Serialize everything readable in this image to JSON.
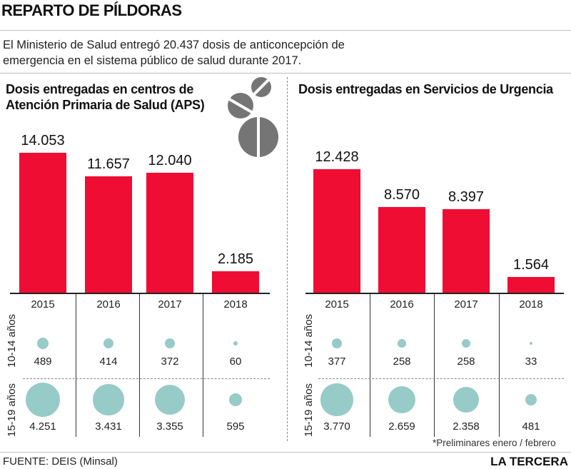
{
  "header": {
    "title": "REPARTO DE PÍLDORAS",
    "intro_line1": "El Ministerio de Salud entregó 20.437 dosis de anticoncepción de",
    "intro_line2": "emergencia  en el sistema público de salud durante 2017."
  },
  "colors": {
    "bar": "#ef0d33",
    "bubble": "#97cbc8",
    "pill": "#757575"
  },
  "icons": [
    "pill-icon",
    "pill-icon",
    "pill-icon"
  ],
  "chart_data": [
    {
      "type": "bar",
      "title_line1": "Dosis entregadas en centros de",
      "title_line2": "Atención Primaria de Salud (APS)",
      "categories": [
        "2015",
        "2016",
        "2017",
        "2018"
      ],
      "values": [
        14053,
        11657,
        12040,
        2185
      ],
      "value_labels": [
        "14.053",
        "11.657",
        "12.040",
        "2.185"
      ],
      "ylim": [
        0,
        16000
      ],
      "age_groups": [
        {
          "label": "10-14 años",
          "values": [
            489,
            414,
            372,
            60
          ],
          "value_labels": [
            "489",
            "414",
            "372",
            "60"
          ]
        },
        {
          "label": "15-19 años",
          "values": [
            4251,
            3431,
            3355,
            595
          ],
          "value_labels": [
            "4.251",
            "3.431",
            "3.355",
            "595"
          ]
        }
      ]
    },
    {
      "type": "bar",
      "title_line1": "Dosis entregadas en Servicios de Urgencia",
      "title_line2": "",
      "categories": [
        "2015",
        "2016",
        "2017",
        "2018"
      ],
      "values": [
        12428,
        8570,
        8397,
        1564
      ],
      "value_labels": [
        "12.428",
        "8.570",
        "8.397",
        "1.564"
      ],
      "ylim": [
        0,
        16000
      ],
      "age_groups": [
        {
          "label": "10-14 años",
          "values": [
            377,
            258,
            258,
            33
          ],
          "value_labels": [
            "377",
            "258",
            "258",
            "33"
          ]
        },
        {
          "label": "15-19 años",
          "values": [
            3770,
            2659,
            2358,
            481
          ],
          "value_labels": [
            "3.770",
            "2.659",
            "2.358",
            "481"
          ]
        }
      ]
    }
  ],
  "footer": {
    "note": "*Preliminares enero / febrero",
    "source": "FUENTE: DEIS (Minsal)",
    "brand": "LA TERCERA"
  }
}
